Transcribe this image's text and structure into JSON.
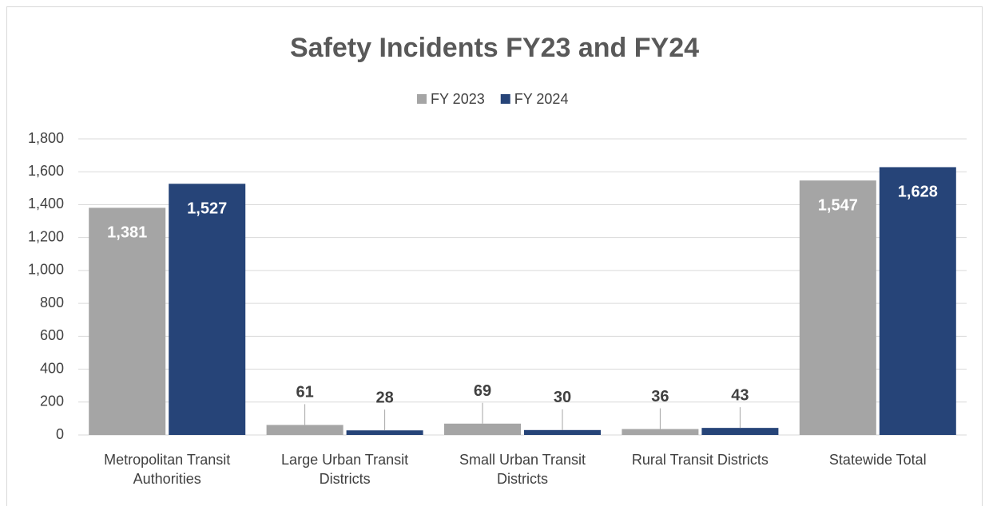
{
  "chart_data": {
    "type": "bar",
    "title": "Safety Incidents FY23 and FY24",
    "categories": [
      "Metropolitan Transit Authorities",
      "Large Urban Transit Districts",
      "Small Urban Transit Districts",
      "Rural Transit Districts",
      "Statewide Total"
    ],
    "series": [
      {
        "name": "FY 2023",
        "color": "#a5a5a5",
        "values": [
          1381,
          61,
          69,
          36,
          1547
        ],
        "value_labels": [
          "1,381",
          "61",
          "69",
          "36",
          "1,547"
        ]
      },
      {
        "name": "FY 2024",
        "color": "#264478",
        "values": [
          1527,
          28,
          30,
          43,
          1628
        ],
        "value_labels": [
          "1,527",
          "28",
          "30",
          "43",
          "1,628"
        ]
      }
    ],
    "ylim": [
      0,
      1800
    ],
    "yticks": [
      0,
      200,
      400,
      600,
      800,
      {
        "value": 1000,
        "label": "1,000"
      },
      {
        "value": 1200,
        "label": "1,200"
      },
      {
        "value": 1400,
        "label": "1,400"
      },
      {
        "value": 1600,
        "label": "1,600"
      },
      {
        "value": 1800,
        "label": "1,800"
      }
    ],
    "grid": true,
    "legend": "top"
  }
}
